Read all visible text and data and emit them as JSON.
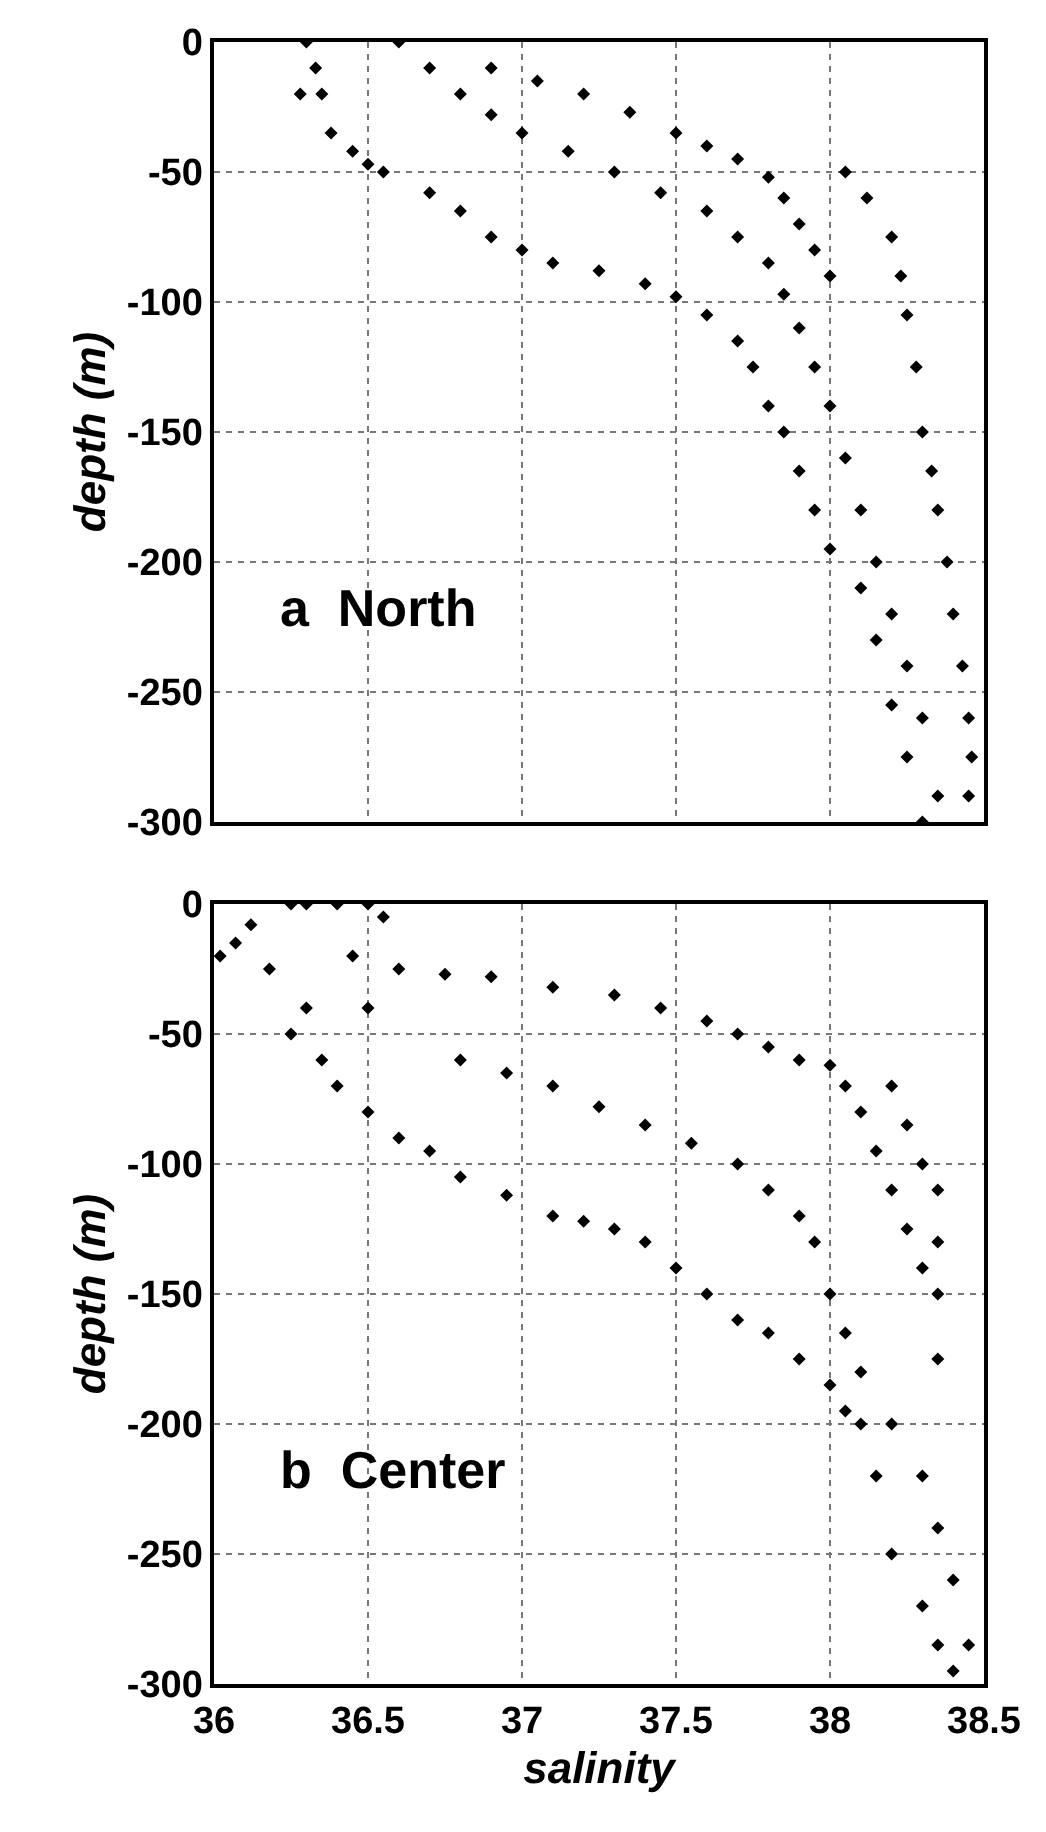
{
  "chart_data": [
    {
      "type": "scatter",
      "ylabel": "depth (m)",
      "annotations": [
        "a  North"
      ],
      "marker": "diamond",
      "grid": true,
      "tick_labels": "y",
      "xlim": [
        36,
        38.5
      ],
      "ylim": [
        -300,
        0
      ],
      "xticks": [
        36,
        36.5,
        37,
        37.5,
        38,
        38.5
      ],
      "yticks": [
        0,
        -50,
        -100,
        -150,
        -200,
        -250,
        -300
      ],
      "series": [
        {
          "color": "#000000",
          "x": [
            36.3,
            36.33,
            36.35,
            36.38,
            36.45,
            36.5,
            36.55,
            36.28,
            36.7,
            36.8,
            36.9,
            37.0,
            37.1,
            37.25,
            37.4,
            37.5,
            37.6,
            37.7,
            37.75,
            37.8,
            37.85,
            37.9,
            37.95,
            38.0,
            38.1,
            38.15,
            38.2,
            38.25,
            38.3,
            38.05,
            38.12,
            38.2,
            38.23,
            38.25,
            38.28,
            38.3,
            38.33,
            38.35,
            38.38,
            38.4,
            38.43,
            38.45,
            38.46,
            38.45,
            36.6,
            36.7,
            36.8,
            36.9,
            37.0,
            37.15,
            37.3,
            37.45,
            37.6,
            37.7,
            37.8,
            37.85,
            37.9,
            37.95,
            38.0,
            38.05,
            38.1,
            38.15,
            38.2,
            38.25,
            38.3,
            38.35,
            36.9,
            37.05,
            37.2,
            37.35,
            37.5,
            37.6,
            37.7,
            37.8,
            37.85,
            37.9,
            37.95,
            38.0
          ],
          "values": [
            0,
            -10,
            -20,
            -35,
            -42,
            -47,
            -50,
            -20,
            -58,
            -65,
            -75,
            -80,
            -85,
            -88,
            -93,
            -98,
            -105,
            -115,
            -125,
            -140,
            -150,
            -165,
            -180,
            -195,
            -210,
            -230,
            -255,
            -275,
            -300,
            -50,
            -60,
            -75,
            -90,
            -105,
            -125,
            -150,
            -165,
            -180,
            -200,
            -220,
            -240,
            -260,
            -275,
            -290,
            0,
            -10,
            -20,
            -28,
            -35,
            -42,
            -50,
            -58,
            -65,
            -75,
            -85,
            -97,
            -110,
            -125,
            -140,
            -160,
            -180,
            -200,
            -220,
            -240,
            -260,
            -290,
            -10,
            -15,
            -20,
            -27,
            -35,
            -40,
            -45,
            -52,
            -60,
            -70,
            -80,
            -90
          ]
        }
      ]
    },
    {
      "type": "scatter",
      "xlabel": "salinity",
      "ylabel": "depth (m)",
      "annotations": [
        "b  Center"
      ],
      "marker": "diamond",
      "grid": true,
      "xlim": [
        36,
        38.5
      ],
      "ylim": [
        -300,
        0
      ],
      "xticks": [
        36,
        36.5,
        37,
        37.5,
        38,
        38.5
      ],
      "yticks": [
        0,
        -50,
        -100,
        -150,
        -200,
        -250,
        -300
      ],
      "series": [
        {
          "color": "#000000",
          "x": [
            36.02,
            36.07,
            36.12,
            36.18,
            36.25,
            36.3,
            36.4,
            36.5,
            36.55,
            36.45,
            36.5,
            36.3,
            36.25,
            36.35,
            36.4,
            36.5,
            36.6,
            36.7,
            36.8,
            36.95,
            37.1,
            37.2,
            37.3,
            37.4,
            37.5,
            37.6,
            37.7,
            37.8,
            37.9,
            38.0,
            38.05,
            38.1,
            38.15,
            38.2,
            38.3,
            38.35,
            38.4,
            36.6,
            36.75,
            36.9,
            37.1,
            37.3,
            37.45,
            37.6,
            37.7,
            37.8,
            37.9,
            38.0,
            38.05,
            38.1,
            38.15,
            38.2,
            38.25,
            38.3,
            38.2,
            38.25,
            38.3,
            38.35,
            38.35,
            38.35,
            38.35,
            36.8,
            36.95,
            37.1,
            37.25,
            37.4,
            37.55,
            37.7,
            37.8,
            37.9,
            37.95,
            38.0,
            38.05,
            38.1,
            38.2,
            38.3,
            38.35,
            38.4,
            38.45
          ],
          "values": [
            -20,
            -15,
            -8,
            -25,
            0,
            0,
            0,
            0,
            -5,
            -20,
            -40,
            -40,
            -50,
            -60,
            -70,
            -80,
            -90,
            -95,
            -105,
            -112,
            -120,
            -122,
            -125,
            -130,
            -140,
            -150,
            -160,
            -165,
            -175,
            -185,
            -195,
            -200,
            -220,
            -250,
            -270,
            -285,
            -295,
            -25,
            -27,
            -28,
            -32,
            -35,
            -40,
            -45,
            -50,
            -55,
            -60,
            -62,
            -70,
            -80,
            -95,
            -110,
            -125,
            -140,
            -70,
            -85,
            -100,
            -110,
            -130,
            -150,
            -175,
            -60,
            -65,
            -70,
            -78,
            -85,
            -92,
            -100,
            -110,
            -120,
            -130,
            -150,
            -165,
            -180,
            -200,
            -220,
            -240,
            -260,
            -285
          ]
        }
      ]
    }
  ]
}
